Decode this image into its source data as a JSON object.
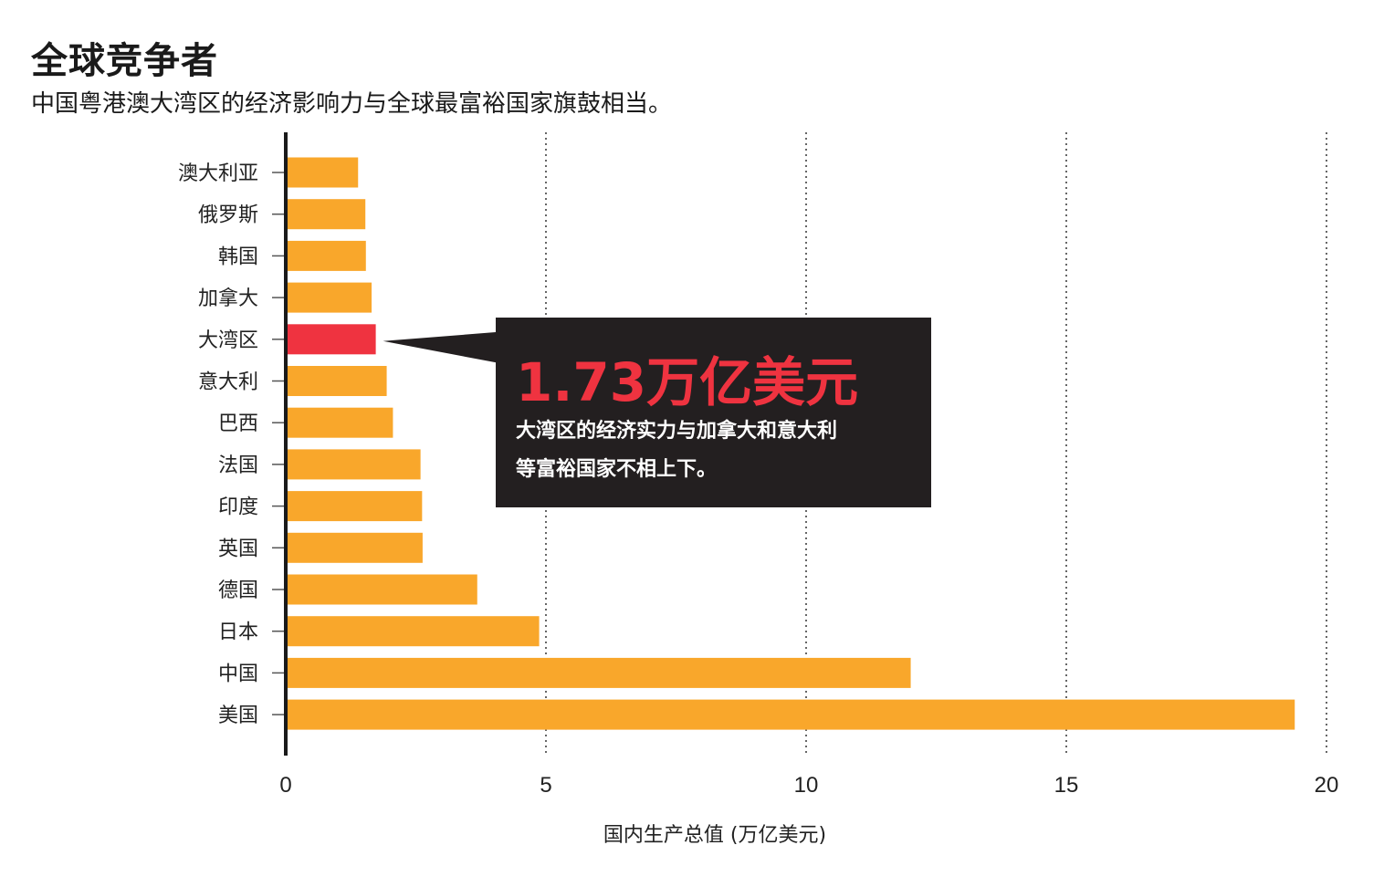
{
  "title": "全球竞争者",
  "subtitle": "中国粤港澳大湾区的经济影响力与全球最富裕国家旗鼓相当。",
  "callout": {
    "value": "1.73万亿美元",
    "text_line1": "大湾区的经济实力与加拿大和意大利",
    "text_line2": "等富裕国家不相上下。"
  },
  "colors": {
    "bar": "#f9a72b",
    "highlight": "#ef3340",
    "callout_bg": "#231f20"
  },
  "chart_data": {
    "type": "bar",
    "orientation": "horizontal",
    "categories": [
      "澳大利亚",
      "俄罗斯",
      "韩国",
      "加拿大",
      "大湾区",
      "意大利",
      "巴西",
      "法国",
      "印度",
      "英国",
      "德国",
      "日本",
      "中国",
      "美国"
    ],
    "values": [
      1.39,
      1.53,
      1.54,
      1.65,
      1.73,
      1.94,
      2.06,
      2.59,
      2.62,
      2.63,
      3.68,
      4.87,
      12.01,
      19.39
    ],
    "highlight": "大湾区",
    "xlabel": "国内生产总值 (万亿美元)",
    "xlim": [
      0,
      20
    ],
    "xticks": [
      "0",
      "5",
      "10",
      "15",
      "20"
    ],
    "grid": "vertical dotted"
  }
}
